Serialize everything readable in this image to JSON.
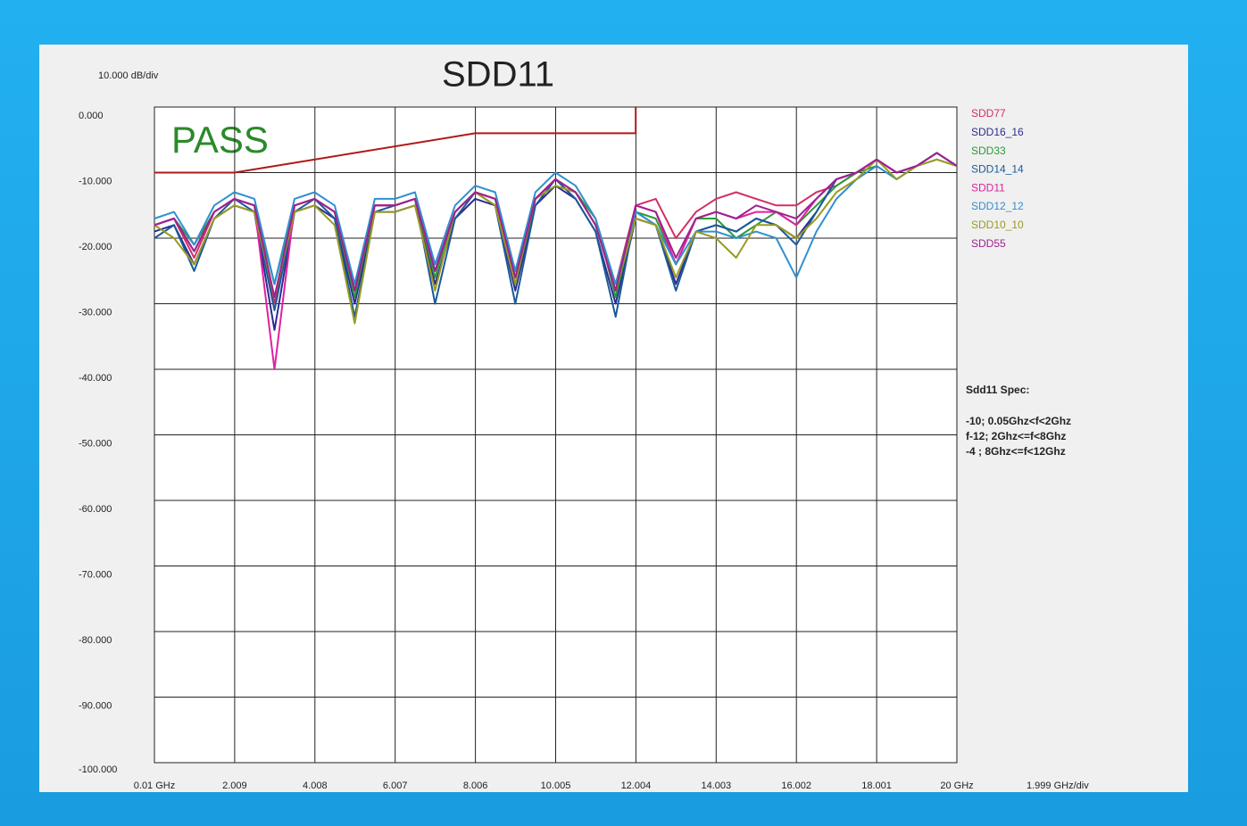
{
  "chart_data": {
    "type": "line",
    "title": "SDD11",
    "y_scale_label": "10.000 dB/div",
    "x_scale_label": "1.999 GHz/div",
    "status": "PASS",
    "spec_title": "Sdd11 Spec:",
    "spec_lines": [
      "-10;  0.05Ghz<f<2Ghz",
      "f-12; 2Ghz<=f<8Ghz",
      "-4 ; 8Ghz<=f<12Ghz"
    ],
    "xlim": [
      0.01,
      20
    ],
    "xticks": [
      {
        "value": 0.01,
        "label": "0.01 GHz"
      },
      2.009,
      4.008,
      6.007,
      8.006,
      10.005,
      12.004,
      14.003,
      16.002,
      18.001,
      {
        "value": 20,
        "label": "20 GHz"
      }
    ],
    "ylim": [
      -100,
      0
    ],
    "yticks": [
      {
        "value": 0,
        "label": "0.000"
      },
      {
        "value": -10,
        "label": "-10.000"
      },
      {
        "value": -20,
        "label": "-20.000"
      },
      {
        "value": -30,
        "label": "-30.000"
      },
      {
        "value": -40,
        "label": "-40.000"
      },
      {
        "value": -50,
        "label": "-50.000"
      },
      {
        "value": -60,
        "label": "-60.000"
      },
      {
        "value": -70,
        "label": "-70.000"
      },
      {
        "value": -80,
        "label": "-80.000"
      },
      {
        "value": -90,
        "label": "-90.000"
      },
      {
        "value": -100,
        "label": "-100.000"
      }
    ],
    "grid": true,
    "limit": {
      "color": "#b01818",
      "x": [
        0.01,
        2,
        8,
        12,
        12
      ],
      "values": [
        -10,
        -10,
        -4,
        -4,
        0
      ]
    },
    "x": [
      0.01,
      0.5,
      1,
      1.5,
      2,
      2.5,
      3,
      3.5,
      4,
      4.5,
      5,
      5.5,
      6,
      6.5,
      7,
      7.5,
      8,
      8.5,
      9,
      9.5,
      10,
      10.5,
      11,
      11.5,
      12,
      12.5,
      13,
      13.5,
      14,
      14.5,
      15,
      15.5,
      16,
      16.5,
      17,
      17.5,
      18,
      18.5,
      19,
      19.5,
      20
    ],
    "series": [
      {
        "name": "SDD77",
        "color": "#d03068",
        "values": [
          -18,
          -17,
          -23,
          -16,
          -14,
          -15,
          -30,
          -15,
          -14,
          -16,
          -27,
          -15,
          -15,
          -14,
          -24,
          -16,
          -13,
          -14,
          -25,
          -14,
          -11,
          -13,
          -18,
          -27,
          -15,
          -14,
          -20,
          -16,
          -14,
          -13,
          -14,
          -15,
          -15,
          -13,
          -12,
          -10,
          -8,
          -10,
          -9,
          -7,
          -9
        ]
      },
      {
        "name": "SDD16_16",
        "color": "#2c2c90",
        "values": [
          -19,
          -18,
          -24,
          -17,
          -15,
          -16,
          -34,
          -16,
          -15,
          -17,
          -30,
          -16,
          -16,
          -15,
          -27,
          -17,
          -14,
          -15,
          -28,
          -15,
          -12,
          -14,
          -19,
          -30,
          -17,
          -18,
          -27,
          -19,
          -18,
          -19,
          -17,
          -18,
          -20,
          -16,
          -11,
          -10,
          -8,
          -10,
          -9,
          -7,
          -9
        ]
      },
      {
        "name": "SDD33",
        "color": "#2a9a3a",
        "values": [
          -18,
          -17,
          -21,
          -16,
          -14,
          -15,
          -27,
          -15,
          -14,
          -16,
          -29,
          -15,
          -15,
          -14,
          -26,
          -16,
          -13,
          -14,
          -27,
          -14,
          -11,
          -13,
          -17,
          -29,
          -16,
          -17,
          -24,
          -17,
          -17,
          -20,
          -18,
          -16,
          -18,
          -15,
          -12,
          -10,
          -9,
          -11,
          -9,
          -8,
          -9
        ]
      },
      {
        "name": "SDD14_14",
        "color": "#1a5a9a",
        "values": [
          -20,
          -18,
          -25,
          -17,
          -14,
          -16,
          -31,
          -16,
          -14,
          -17,
          -32,
          -16,
          -15,
          -14,
          -30,
          -17,
          -13,
          -15,
          -30,
          -15,
          -11,
          -14,
          -19,
          -32,
          -16,
          -18,
          -28,
          -19,
          -18,
          -19,
          -17,
          -18,
          -21,
          -16,
          -11,
          -10,
          -8,
          -10,
          -9,
          -7,
          -9
        ]
      },
      {
        "name": "SDD11",
        "color": "#e020a0",
        "values": [
          -18,
          -17,
          -22,
          -16,
          -14,
          -15,
          -40,
          -15,
          -14,
          -16,
          -28,
          -15,
          -15,
          -14,
          -25,
          -16,
          -13,
          -14,
          -26,
          -14,
          -11,
          -13,
          -18,
          -28,
          -15,
          -16,
          -24,
          -17,
          -16,
          -17,
          -16,
          -16,
          -18,
          -14,
          -11,
          -10,
          -8,
          -10,
          -9,
          -7,
          -9
        ]
      },
      {
        "name": "SDD12_12",
        "color": "#3090d0",
        "values": [
          -17,
          -16,
          -21,
          -15,
          -13,
          -14,
          -27,
          -14,
          -13,
          -15,
          -27,
          -14,
          -14,
          -13,
          -24,
          -15,
          -12,
          -13,
          -25,
          -13,
          -10,
          -12,
          -17,
          -27,
          -16,
          -18,
          -24,
          -19,
          -19,
          -20,
          -19,
          -20,
          -26,
          -19,
          -14,
          -11,
          -9,
          -11,
          -9,
          -7,
          -9
        ]
      },
      {
        "name": "SDD10_10",
        "color": "#9a9a20",
        "values": [
          -18,
          -20,
          -24,
          -17,
          -15,
          -16,
          -29,
          -16,
          -15,
          -18,
          -33,
          -16,
          -16,
          -15,
          -28,
          -16,
          -13,
          -15,
          -27,
          -14,
          -12,
          -13,
          -18,
          -28,
          -17,
          -18,
          -26,
          -19,
          -20,
          -23,
          -18,
          -18,
          -20,
          -17,
          -13,
          -11,
          -8,
          -11,
          -9,
          -8,
          -9
        ]
      },
      {
        "name": "SDD55",
        "color": "#a02090",
        "values": [
          -18,
          -17,
          -22,
          -16,
          -14,
          -15,
          -29,
          -15,
          -14,
          -16,
          -28,
          -15,
          -15,
          -14,
          -25,
          -16,
          -13,
          -14,
          -26,
          -14,
          -11,
          -13,
          -18,
          -28,
          -15,
          -16,
          -23,
          -17,
          -16,
          -17,
          -15,
          -16,
          -17,
          -14,
          -11,
          -10,
          -8,
          -10,
          -9,
          -7,
          -9
        ]
      }
    ]
  }
}
